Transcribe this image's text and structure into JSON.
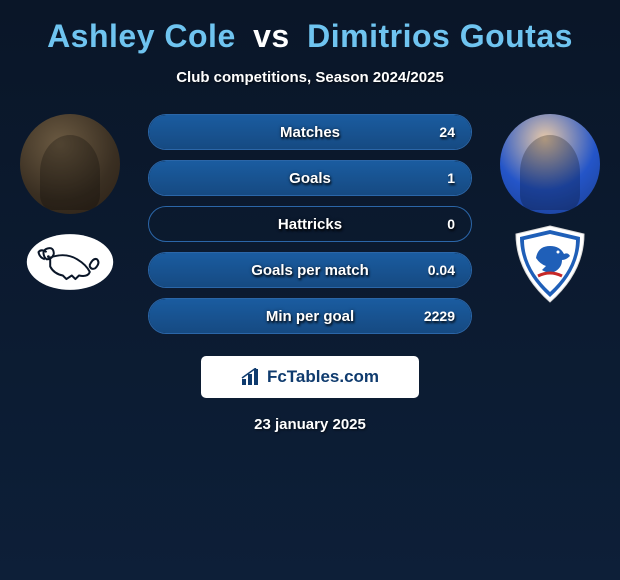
{
  "title": {
    "player1": "Ashley Cole",
    "vs": "vs",
    "player2": "Dimitrios Goutas"
  },
  "subtitle": "Club competitions, Season 2024/2025",
  "stats": [
    {
      "label": "Matches",
      "value_right": "24",
      "fill_pct": 100
    },
    {
      "label": "Goals",
      "value_right": "1",
      "fill_pct": 100
    },
    {
      "label": "Hattricks",
      "value_right": "0",
      "fill_pct": 0
    },
    {
      "label": "Goals per match",
      "value_right": "0.04",
      "fill_pct": 100
    },
    {
      "label": "Min per goal",
      "value_right": "2229",
      "fill_pct": 100
    }
  ],
  "logo_text": "FcTables.com",
  "date": "23 january 2025",
  "colors": {
    "bg_top": "#0a1628",
    "bg_bottom": "#0d1f38",
    "accent": "#6fc4f0",
    "bar_border": "#2b66a8",
    "bar_fill_top": "#1a5ca0",
    "bar_fill_bottom": "#164a82",
    "white": "#ffffff",
    "logo_text": "#0f3b6e"
  },
  "clubs": {
    "left_name": "derby-county",
    "right_name": "cardiff-city"
  }
}
